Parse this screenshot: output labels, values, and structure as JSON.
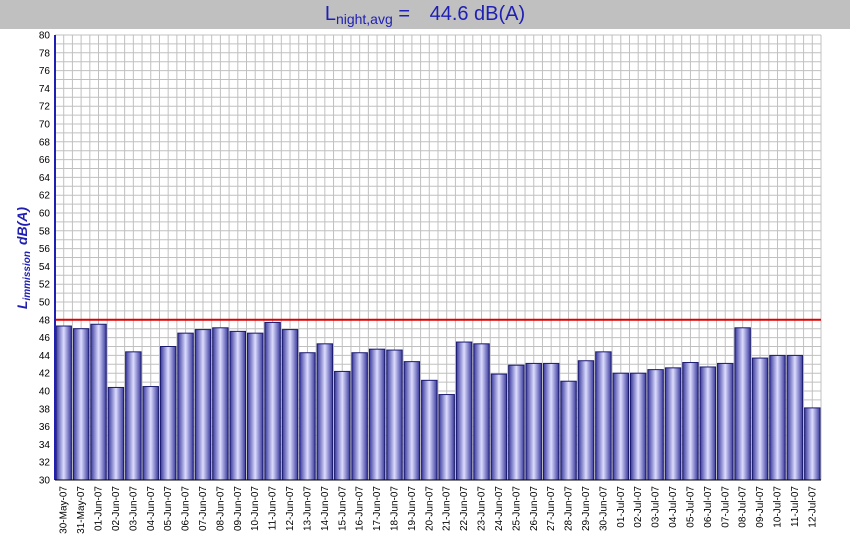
{
  "chart_data": {
    "type": "bar",
    "title": {
      "main": "L",
      "sub": "night,avg",
      "equals": "=",
      "value": "44.6 dB(A)"
    },
    "ylabel": {
      "main": "L",
      "sub": "immission",
      "unit": "dB(A)"
    },
    "xlabel": "",
    "ylim": [
      30,
      80
    ],
    "ytick_step": 2,
    "grid": true,
    "reference_line": 48,
    "categories": [
      "30-May-07",
      "31-May-07",
      "01-Jun-07",
      "02-Jun-07",
      "03-Jun-07",
      "04-Jun-07",
      "05-Jun-07",
      "06-Jun-07",
      "07-Jun-07",
      "08-Jun-07",
      "09-Jun-07",
      "10-Jun-07",
      "11-Jun-07",
      "12-Jun-07",
      "13-Jun-07",
      "14-Jun-07",
      "15-Jun-07",
      "16-Jun-07",
      "17-Jun-07",
      "18-Jun-07",
      "19-Jun-07",
      "20-Jun-07",
      "21-Jun-07",
      "22-Jun-07",
      "23-Jun-07",
      "24-Jun-07",
      "25-Jun-07",
      "26-Jun-07",
      "27-Jun-07",
      "28-Jun-07",
      "29-Jun-07",
      "30-Jun-07",
      "01-Jul-07",
      "02-Jul-07",
      "03-Jul-07",
      "04-Jul-07",
      "05-Jul-07",
      "06-Jul-07",
      "07-Jul-07",
      "08-Jul-07",
      "09-Jul-07",
      "10-Jul-07",
      "11-Jul-07",
      "12-Jul-07"
    ],
    "values": [
      47.3,
      47.0,
      47.5,
      40.4,
      44.4,
      40.5,
      45.0,
      46.5,
      46.9,
      47.1,
      46.7,
      46.5,
      47.7,
      46.9,
      44.3,
      45.3,
      42.2,
      44.3,
      44.7,
      44.6,
      43.3,
      41.2,
      39.6,
      45.5,
      45.3,
      41.9,
      42.9,
      43.1,
      43.1,
      41.1,
      43.4,
      44.4,
      42.0,
      42.0,
      42.4,
      42.6,
      43.2,
      42.7,
      43.1,
      47.1,
      43.7,
      44.0,
      44.0,
      38.1
    ],
    "colors": {
      "bar_edge": "#1a1a70",
      "bar_dark": "#3a3a9e",
      "bar_light": "#dcdcff",
      "grid": "#c0c0c0",
      "axis": "#1f1fb4",
      "reference_line": "#e00000",
      "title": "#1f1fb4",
      "title_bg": "#c0c0c0"
    }
  }
}
